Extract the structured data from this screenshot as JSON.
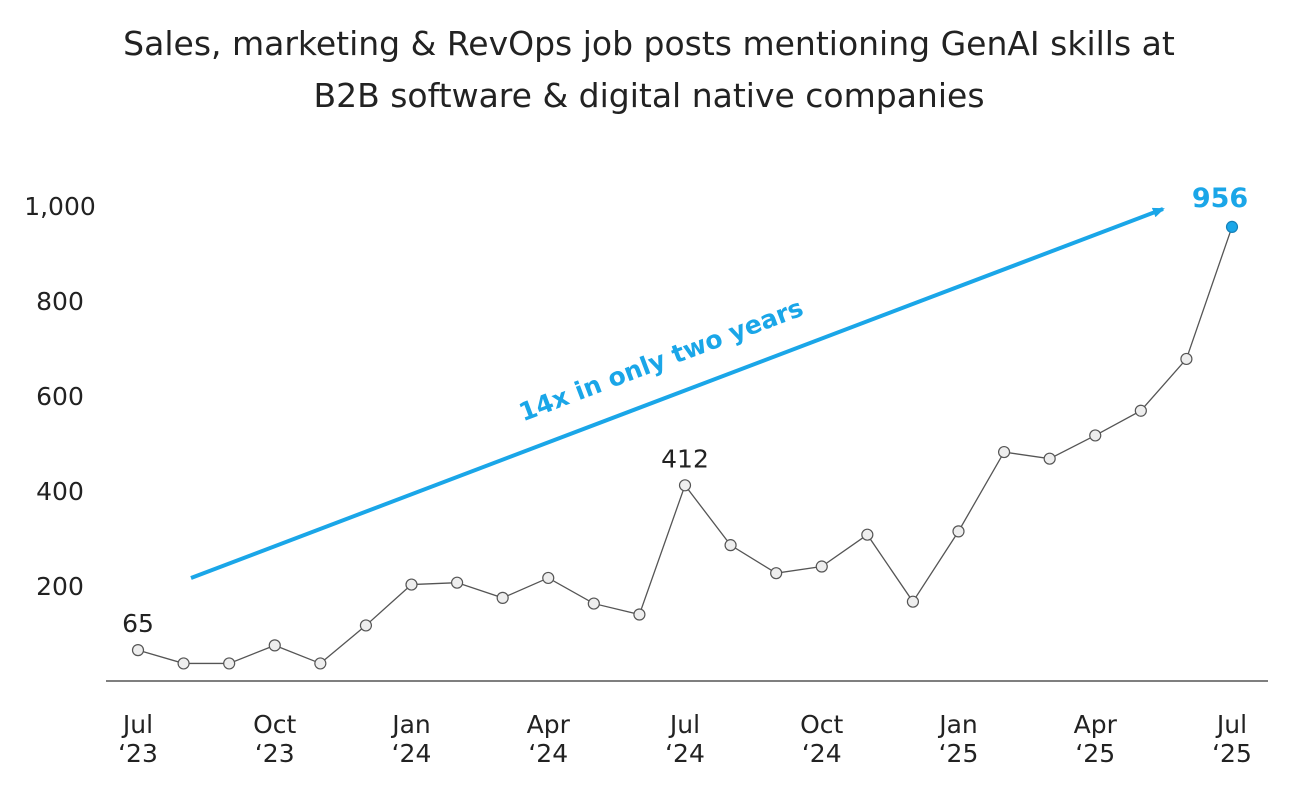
{
  "chart_data": {
    "type": "line",
    "title_lines": [
      "Sales, marketing & RevOps job posts mentioning GenAI skills at",
      "B2B software & digital native companies"
    ],
    "xlabel": "",
    "ylabel": "",
    "ylim": [
      0,
      1000
    ],
    "yticks": [
      {
        "value": 200,
        "label": "200"
      },
      {
        "value": 400,
        "label": "400"
      },
      {
        "value": 600,
        "label": "600"
      },
      {
        "value": 800,
        "label": "800"
      },
      {
        "value": 1000,
        "label": "1,000"
      }
    ],
    "x": [
      "2023-07",
      "2023-08",
      "2023-09",
      "2023-10",
      "2023-11",
      "2023-12",
      "2024-01",
      "2024-02",
      "2024-03",
      "2024-04",
      "2024-05",
      "2024-06",
      "2024-07",
      "2024-08",
      "2024-09",
      "2024-10",
      "2024-11",
      "2024-12",
      "2025-01",
      "2025-02",
      "2025-03",
      "2025-04",
      "2025-05",
      "2025-06",
      "2025-07"
    ],
    "xticks": [
      {
        "index": 0,
        "line1": "Jul",
        "line2": "‘23"
      },
      {
        "index": 3,
        "line1": "Oct",
        "line2": "‘23"
      },
      {
        "index": 6,
        "line1": "Jan",
        "line2": "‘24"
      },
      {
        "index": 9,
        "line1": "Apr",
        "line2": "‘24"
      },
      {
        "index": 12,
        "line1": "Jul",
        "line2": "‘24"
      },
      {
        "index": 15,
        "line1": "Oct",
        "line2": "‘24"
      },
      {
        "index": 18,
        "line1": "Jan",
        "line2": "‘25"
      },
      {
        "index": 21,
        "line1": "Apr",
        "line2": "‘25"
      },
      {
        "index": 24,
        "line1": "Jul",
        "line2": "‘25"
      }
    ],
    "series": [
      {
        "values": [
          65,
          37,
          37,
          75,
          37,
          117,
          203,
          207,
          175,
          217,
          163,
          140,
          412,
          286,
          227,
          241,
          308,
          167,
          315,
          482,
          468,
          517,
          569,
          678,
          956
        ]
      }
    ],
    "data_labels": [
      {
        "index": 0,
        "text": "65"
      },
      {
        "index": 12,
        "text": "412"
      },
      {
        "index": 24,
        "text": "956",
        "accent": true
      }
    ],
    "annotation": {
      "text": "14x in only two years"
    },
    "grid": false,
    "colors": {
      "line": "#555555",
      "marker_fill": "#eeeeee",
      "marker_stroke": "#555555",
      "accent": "#1aa6e8",
      "axis": "#333333"
    }
  }
}
